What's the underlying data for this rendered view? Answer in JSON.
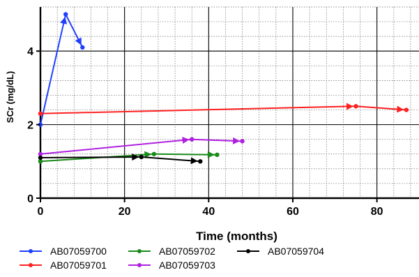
{
  "chart_data": {
    "type": "line",
    "title": "",
    "xlabel": "Time (months)",
    "ylabel": "SCr (mg/dL)",
    "xlim": [
      0,
      90
    ],
    "ylim": [
      0,
      5.2
    ],
    "x_ticks": [
      0,
      20,
      40,
      60,
      80
    ],
    "x_tick_labels": [
      "0",
      "20",
      "40",
      "60",
      "80"
    ],
    "y_ticks": [
      0,
      2,
      4
    ],
    "y_tick_labels": [
      "0",
      "2",
      "4"
    ],
    "grid": true,
    "minor_grid": true,
    "legend_position": "bottom",
    "series": [
      {
        "name": "AB07059700",
        "color": "#1f3fff",
        "x": [
          0,
          6,
          10
        ],
        "y": [
          2.0,
          5.0,
          4.1
        ]
      },
      {
        "name": "AB07059701",
        "color": "#ff2020",
        "x": [
          0,
          75,
          87
        ],
        "y": [
          2.3,
          2.5,
          2.4
        ]
      },
      {
        "name": "AB07059702",
        "color": "#1a8a1a",
        "x": [
          0,
          27,
          42
        ],
        "y": [
          1.0,
          1.2,
          1.18
        ]
      },
      {
        "name": "AB07059703",
        "color": "#b020e0",
        "x": [
          0,
          36,
          48
        ],
        "y": [
          1.2,
          1.6,
          1.55
        ]
      },
      {
        "name": "AB07059704",
        "color": "#000000",
        "x": [
          0,
          24,
          38
        ],
        "y": [
          1.1,
          1.12,
          1.0
        ]
      }
    ]
  }
}
